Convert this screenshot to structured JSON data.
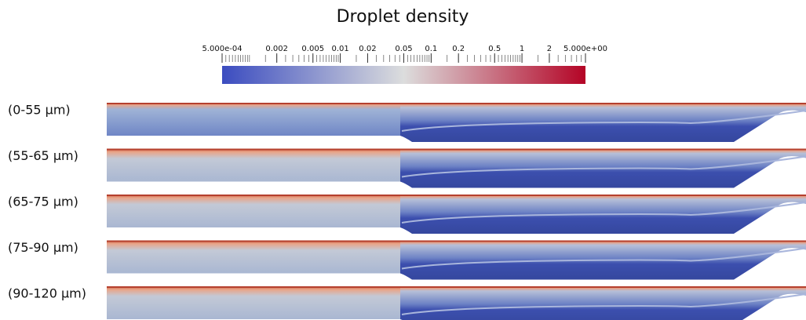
{
  "title": "Droplet density",
  "colorbar": {
    "scale": "log",
    "range": [
      0.0005,
      5
    ],
    "ticks": [
      {
        "value": 0.0005,
        "label": "5.000e-04"
      },
      0.002,
      0.005,
      0.01,
      0.02,
      0.05,
      0.1,
      0.2,
      0.5,
      1,
      2,
      {
        "value": 5,
        "label": "5.000e+00"
      }
    ],
    "colors": [
      "#3b4cc0",
      "#dcdddd",
      "#b40426"
    ]
  },
  "panels": [
    {
      "label": "(0-55  µm)"
    },
    {
      "label": "(55-65 µm)"
    },
    {
      "label": "(65-75 µm)"
    },
    {
      "label": "(75-90 µm)"
    },
    {
      "label": "(90-120 µm)"
    }
  ]
}
